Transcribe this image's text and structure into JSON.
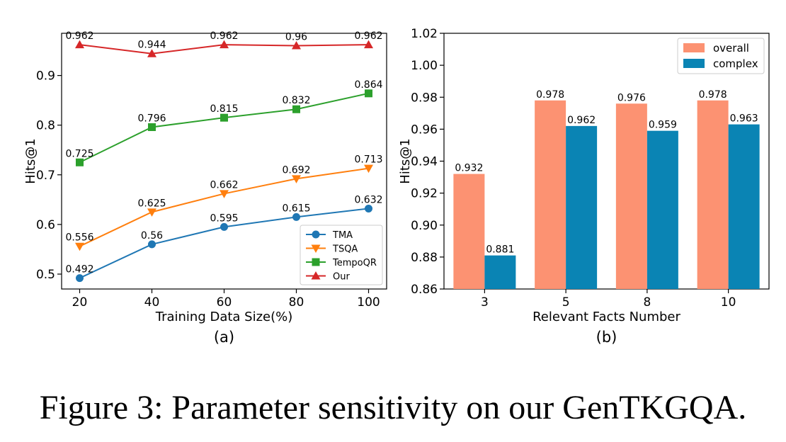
{
  "caption": "Figure 3: Parameter sensitivity on our GenTKGQA.",
  "chart_data": [
    {
      "type": "line",
      "panel_label": "(a)",
      "xlabel": "Training Data Size(%)",
      "ylabel": "Hits@1",
      "x": [
        20,
        40,
        60,
        80,
        100
      ],
      "xticks": [
        "20",
        "40",
        "60",
        "80",
        "100"
      ],
      "xlim": [
        15,
        105
      ],
      "ylim": [
        0.47,
        0.985
      ],
      "yticks": [
        "0.5",
        "0.6",
        "0.7",
        "0.8",
        "0.9"
      ],
      "grid": false,
      "legend_position": "lower-right",
      "series": [
        {
          "name": "TMA",
          "color": "#1f77b4",
          "marker": "circle",
          "values": [
            0.492,
            0.56,
            0.595,
            0.615,
            0.632
          ],
          "labels": [
            "0.492",
            "0.56",
            "0.595",
            "0.615",
            "0.632"
          ]
        },
        {
          "name": "TSQA",
          "color": "#ff7f0e",
          "marker": "triangle-down",
          "values": [
            0.556,
            0.625,
            0.662,
            0.692,
            0.713
          ],
          "labels": [
            "0.556",
            "0.625",
            "0.662",
            "0.692",
            "0.713"
          ]
        },
        {
          "name": "TempoQR",
          "color": "#2ca02c",
          "marker": "square",
          "values": [
            0.725,
            0.796,
            0.815,
            0.832,
            0.864
          ],
          "labels": [
            "0.725",
            "0.796",
            "0.815",
            "0.832",
            "0.864"
          ]
        },
        {
          "name": "Our",
          "color": "#d62728",
          "marker": "triangle-up",
          "values": [
            0.962,
            0.944,
            0.962,
            0.96,
            0.962
          ],
          "labels": [
            "0.962",
            "0.944",
            "0.962",
            "0.96",
            "0.962"
          ]
        }
      ]
    },
    {
      "type": "bar",
      "panel_label": "(b)",
      "xlabel": "Relevant Facts Number",
      "ylabel": "Hits@1",
      "categories": [
        "3",
        "5",
        "8",
        "10"
      ],
      "ylim": [
        0.86,
        1.02
      ],
      "yticks": [
        "0.86",
        "0.88",
        "0.90",
        "0.92",
        "0.94",
        "0.96",
        "0.98",
        "1.00",
        "1.02"
      ],
      "grid": false,
      "legend_position": "top-right",
      "series": [
        {
          "name": "overall",
          "color": "#fc9272",
          "values": [
            0.932,
            0.978,
            0.976,
            0.978
          ],
          "labels": [
            "0.932",
            "0.978",
            "0.976",
            "0.978"
          ]
        },
        {
          "name": "complex",
          "color": "#0a84b4",
          "values": [
            0.881,
            0.962,
            0.959,
            0.963
          ],
          "labels": [
            "0.881",
            "0.962",
            "0.959",
            "0.963"
          ]
        }
      ]
    }
  ]
}
